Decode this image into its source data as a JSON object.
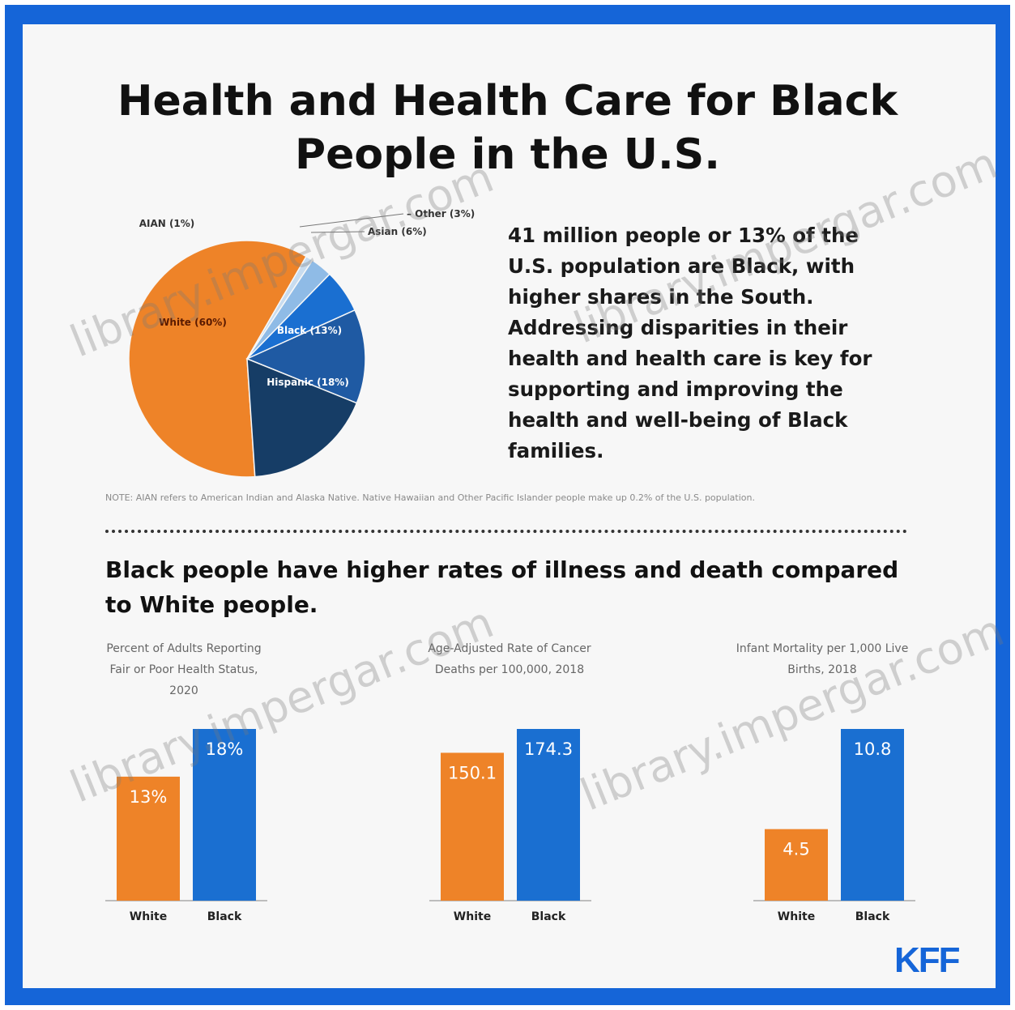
{
  "title_line1": "Health and Health Care for Black",
  "title_line2": "People in the U.S.",
  "intro_text": "41 million people or 13% of the U.S. population are Black, with higher shares in the South. Addressing disparities in their health and health care is key for supporting and improving the health and well-being of Black families.",
  "note_text": "NOTE: AIAN refers to American Indian and Alaska Native. Native Hawaiian and Other Pacific Islander people make up 0.2% of the U.S. population.",
  "section_heading": "Black people have higher rates of illness and death compared to White people.",
  "logo_text": "KFF",
  "watermark_text": "library.impergar.com",
  "colors": {
    "frame": "#1565d8",
    "white_series": "#ee8328",
    "black_series": "#1a6fd1",
    "navy": "#163d66"
  },
  "chart_data": [
    {
      "type": "pie",
      "slices": [
        {
          "label": "White (60%)",
          "value": 60,
          "color": "#ee8328"
        },
        {
          "label": "AIAN (1%)",
          "value": 1,
          "color": "#c8dcef"
        },
        {
          "label": "Other (3%)",
          "value": 3,
          "color": "#8fbbe6"
        },
        {
          "label": "Asian (6%)",
          "value": 6,
          "color": "#1a6fd1"
        },
        {
          "label": "Black (13%)",
          "value": 13,
          "color": "#1f5aa3"
        },
        {
          "label": "Hispanic (18%)",
          "value": 18,
          "color": "#163d66"
        }
      ]
    },
    {
      "type": "bar",
      "title": "Percent of Adults Reporting Fair or Poor Health Status, 2020",
      "categories": [
        "White",
        "Black"
      ],
      "values": [
        13,
        18
      ],
      "value_labels": [
        "13%",
        "18%"
      ],
      "ylim": [
        0,
        18
      ]
    },
    {
      "type": "bar",
      "title": "Age-Adjusted Rate of Cancer Deaths per 100,000, 2018",
      "categories": [
        "White",
        "Black"
      ],
      "values": [
        150.1,
        174.3
      ],
      "value_labels": [
        "150.1",
        "174.3"
      ],
      "ylim": [
        0,
        174.3
      ]
    },
    {
      "type": "bar",
      "title": "Infant Mortality per 1,000 Live Births, 2018",
      "categories": [
        "White",
        "Black"
      ],
      "values": [
        4.5,
        10.8
      ],
      "value_labels": [
        "4.5",
        "10.8"
      ],
      "ylim": [
        0,
        10.8
      ]
    }
  ]
}
